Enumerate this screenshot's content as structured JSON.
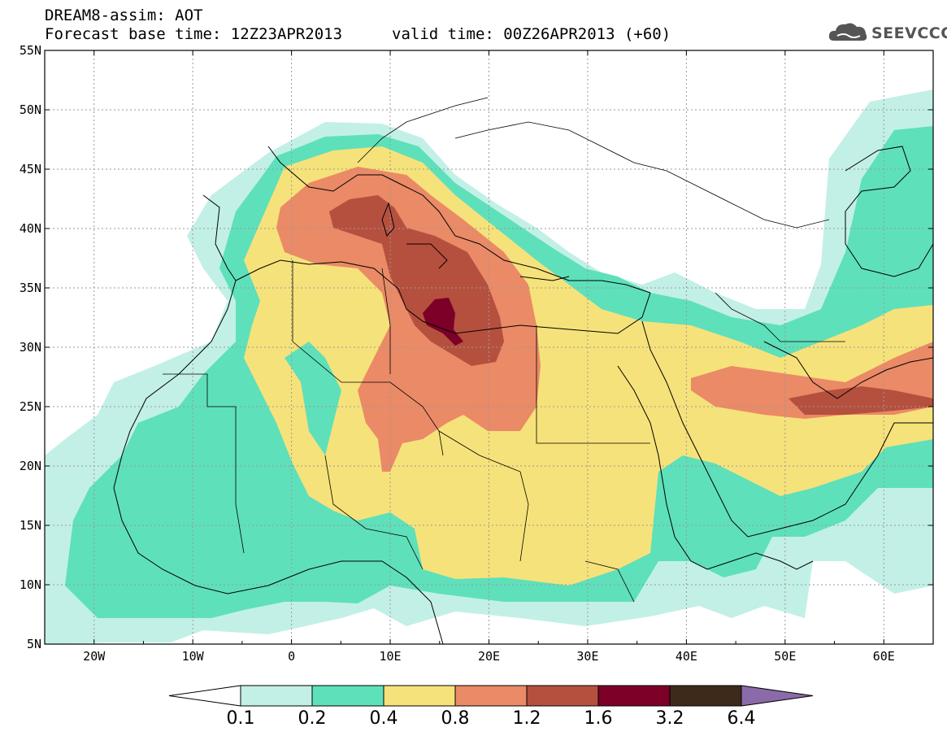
{
  "header": {
    "model_title": "DREAM8-assim: AOT",
    "base_time": "Forecast base time: 12Z23APR2013",
    "valid_time": "valid time: 00Z26APR2013 (+60)"
  },
  "logo": {
    "text": "SEEVCCC",
    "icon": "cloud-icon"
  },
  "map": {
    "lat_labels": [
      "55N",
      "50N",
      "45N",
      "40N",
      "35N",
      "30N",
      "25N",
      "20N",
      "15N",
      "10N",
      "5N"
    ],
    "lon_labels": [
      "20W",
      "10W",
      "0",
      "10E",
      "20E",
      "30E",
      "40E",
      "50E",
      "60E"
    ],
    "lat_range": [
      5,
      55
    ],
    "lon_range": [
      -25,
      65
    ]
  },
  "legend": {
    "labels": [
      "0.1",
      "0.2",
      "0.4",
      "0.8",
      "1.2",
      "1.6",
      "3.2",
      "6.4"
    ],
    "colors": [
      "#ffffff",
      "#c2f0e6",
      "#5ee0bb",
      "#f6e27a",
      "#ea8a66",
      "#b5503f",
      "#7c0027",
      "#3d2a1a",
      "#8a6aa8"
    ]
  }
}
